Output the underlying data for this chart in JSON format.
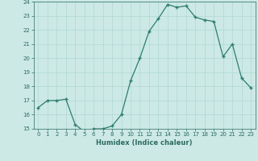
{
  "xlabel": "Humidex (Indice chaleur)",
  "x": [
    0,
    1,
    2,
    3,
    4,
    5,
    6,
    7,
    8,
    9,
    10,
    11,
    12,
    13,
    14,
    15,
    16,
    17,
    18,
    19,
    20,
    21,
    22,
    23
  ],
  "y": [
    16.5,
    17.0,
    17.0,
    17.1,
    15.3,
    14.8,
    15.0,
    15.0,
    15.2,
    16.0,
    18.4,
    20.0,
    21.9,
    22.8,
    23.8,
    23.6,
    23.7,
    22.9,
    22.7,
    22.6,
    20.1,
    21.0,
    18.6,
    17.9
  ],
  "line_color": "#2d7d6e",
  "marker_color": "#2d7d6e",
  "bg_color": "#cce9e5",
  "grid_color": "#b0d8d3",
  "axis_label_color": "#2d6b60",
  "tick_color": "#2d6b60",
  "ylim": [
    15,
    24
  ],
  "yticks": [
    15,
    16,
    17,
    18,
    19,
    20,
    21,
    22,
    23,
    24
  ],
  "xticks": [
    0,
    1,
    2,
    3,
    4,
    5,
    6,
    7,
    8,
    9,
    10,
    11,
    12,
    13,
    14,
    15,
    16,
    17,
    18,
    19,
    20,
    21,
    22,
    23
  ]
}
